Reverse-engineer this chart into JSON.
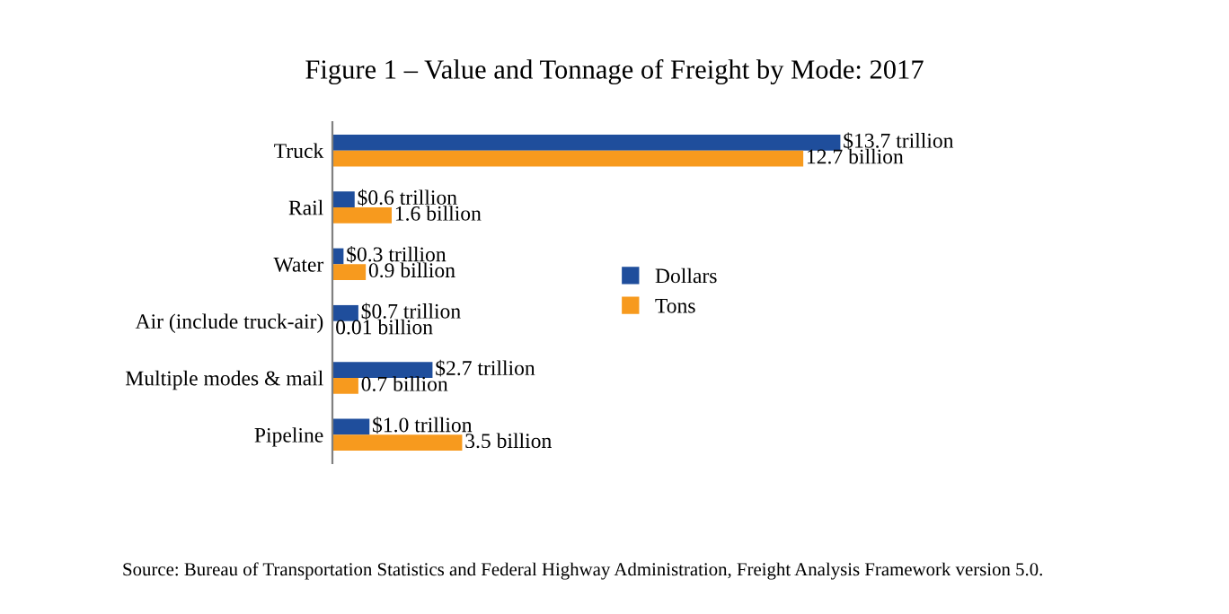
{
  "chart_data": {
    "type": "bar",
    "orientation": "horizontal",
    "title": "Figure 1 – Value and Tonnage of Freight by Mode: 2017",
    "categories": [
      "Truck",
      "Rail",
      "Water",
      "Air (include truck-air)",
      "Multiple modes & mail",
      "Pipeline"
    ],
    "series": [
      {
        "name": "Dollars",
        "color": "#1f4e9c",
        "values": [
          13.7,
          0.6,
          0.3,
          0.7,
          2.7,
          1.0
        ],
        "value_labels": [
          "$13.7 trillion",
          "$0.6 trillion",
          "$0.3 trillion",
          "$0.7 trillion",
          "$2.7 trillion",
          "$1.0 trillion"
        ]
      },
      {
        "name": "Tons",
        "color": "#f79a1e",
        "values": [
          12.7,
          1.6,
          0.9,
          0.01,
          0.7,
          3.5
        ],
        "value_labels": [
          "12.7 billion",
          "1.6 billion",
          "0.9 billion",
          "0.01 billion",
          "0.7 billion",
          "3.5 billion"
        ]
      }
    ],
    "legend": "center",
    "grid": false,
    "annotations": [
      "Source: Bureau of Transportation Statistics and Federal Highway Administration, Freight Analysis Framework version 5.0."
    ]
  }
}
